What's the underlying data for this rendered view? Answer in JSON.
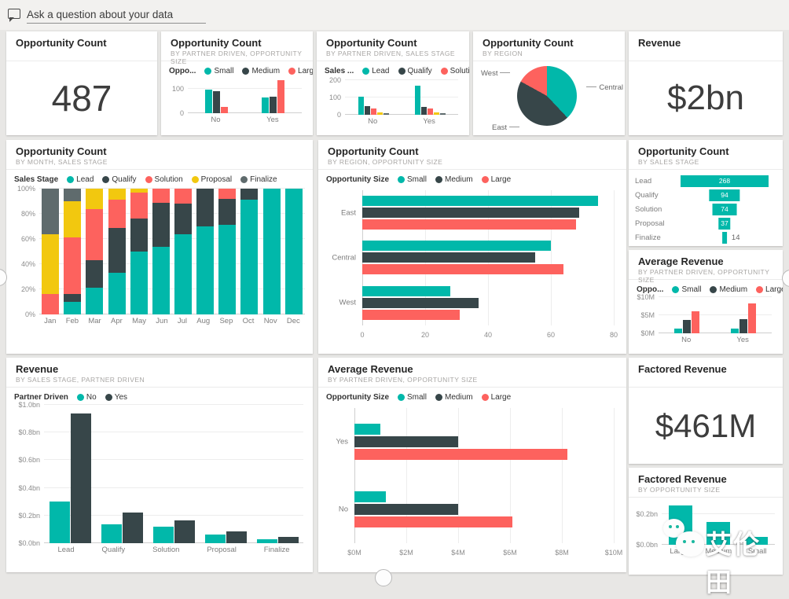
{
  "qna": {
    "placeholder": "Ask a question about your data"
  },
  "palette": {
    "teal": "#01B8AA",
    "dark": "#374649",
    "red": "#FD625E",
    "yellow": "#F2C80F",
    "gray": "#5F6B6D",
    "tile_bg": "#FFFFFF",
    "page_bg": "#E8E7E5",
    "axis_text": "#8C8C8C"
  },
  "tiles": {
    "t1": {
      "title": "Opportunity Count",
      "value": "487"
    },
    "t2": {
      "title": "Opportunity Count",
      "subtitle": "BY PARTNER DRIVEN, OPPORTUNITY SIZE"
    },
    "t3": {
      "title": "Opportunity Count",
      "subtitle": "BY PARTNER DRIVEN, SALES STAGE"
    },
    "t4": {
      "title": "Opportunity Count",
      "subtitle": "BY REGION"
    },
    "t5": {
      "title": "Revenue",
      "value": "$2bn"
    },
    "t6": {
      "title": "Opportunity Count",
      "subtitle": "BY MONTH, SALES STAGE"
    },
    "t7": {
      "title": "Opportunity Count",
      "subtitle": "BY REGION, OPPORTUNITY SIZE"
    },
    "t8": {
      "title": "Opportunity Count",
      "subtitle": "BY SALES STAGE"
    },
    "t9": {
      "title": "Average Revenue",
      "subtitle": "BY PARTNER DRIVEN, OPPORTUNITY SIZE"
    },
    "t10": {
      "title": "Revenue",
      "subtitle": "BY SALES STAGE, PARTNER DRIVEN"
    },
    "t11": {
      "title": "Average Revenue",
      "subtitle": "BY PARTNER DRIVEN, OPPORTUNITY SIZE"
    },
    "t12": {
      "title": "Factored Revenue",
      "value": "$461M"
    },
    "t13": {
      "title": "Factored Revenue",
      "subtitle": "BY OPPORTUNITY SIZE"
    }
  },
  "chart_data": {
    "partner_size_count": {
      "type": "bar",
      "legend_title": "Oppo...",
      "legend": [
        {
          "label": "Small",
          "color": "teal"
        },
        {
          "label": "Medium",
          "color": "dark"
        },
        {
          "label": "Large",
          "color": "red"
        }
      ],
      "categories": [
        "No",
        "Yes"
      ],
      "ymax": 140,
      "yticks": [
        {
          "label": "100",
          "v": 100
        },
        {
          "label": "0",
          "v": 0
        }
      ],
      "series": [
        {
          "label": "Small",
          "color": "teal",
          "values": [
            95,
            65
          ]
        },
        {
          "label": "Medium",
          "color": "dark",
          "values": [
            90,
            68
          ]
        },
        {
          "label": "Large",
          "color": "red",
          "values": [
            25,
            135
          ]
        }
      ]
    },
    "partner_stage_count": {
      "type": "bar",
      "legend_title": "Sales ...",
      "legend": [
        {
          "label": "Lead",
          "color": "teal"
        },
        {
          "label": "Qualify",
          "color": "dark"
        },
        {
          "label": "Solution",
          "color": "red"
        }
      ],
      "categories": [
        "No",
        "Yes"
      ],
      "ymax": 210,
      "yticks": [
        {
          "label": "200",
          "v": 200
        },
        {
          "label": "100",
          "v": 100
        },
        {
          "label": "0",
          "v": 0
        }
      ],
      "series": [
        {
          "label": "Lead",
          "color": "teal",
          "values": [
            105,
            170
          ]
        },
        {
          "label": "Qualify",
          "color": "dark",
          "values": [
            50,
            45
          ]
        },
        {
          "label": "Solution",
          "color": "red",
          "values": [
            35,
            38
          ]
        },
        {
          "label": "Proposal",
          "color": "yellow",
          "values": [
            15,
            15
          ]
        },
        {
          "label": "Finalize",
          "color": "gray",
          "values": [
            8,
            8
          ]
        }
      ]
    },
    "region_pie": {
      "type": "pie",
      "slices": [
        {
          "label": "Central",
          "color": "teal",
          "pct": 38
        },
        {
          "label": "East",
          "color": "dark",
          "pct": 45
        },
        {
          "label": "West",
          "color": "red",
          "pct": 17
        }
      ]
    },
    "month_stage": {
      "type": "stacked-bar-100",
      "legend_title": "Sales Stage",
      "legend": [
        {
          "label": "Lead",
          "color": "teal"
        },
        {
          "label": "Qualify",
          "color": "dark"
        },
        {
          "label": "Solution",
          "color": "red"
        },
        {
          "label": "Proposal",
          "color": "yellow"
        },
        {
          "label": "Finalize",
          "color": "gray"
        }
      ],
      "categories": [
        "Jan",
        "Feb",
        "Mar",
        "Apr",
        "May",
        "Jun",
        "Jul",
        "Aug",
        "Sep",
        "Oct",
        "Nov",
        "Dec"
      ],
      "ymax": 100,
      "yticks": [
        {
          "label": "100%",
          "v": 100
        },
        {
          "label": "80%",
          "v": 80
        },
        {
          "label": "60%",
          "v": 60
        },
        {
          "label": "40%",
          "v": 40
        },
        {
          "label": "20%",
          "v": 20
        },
        {
          "label": "0%",
          "v": 0
        }
      ],
      "series": [
        {
          "label": "Lead",
          "color": "teal",
          "values": [
            0,
            10,
            21,
            33,
            50,
            54,
            64,
            70,
            71,
            91,
            100,
            100
          ]
        },
        {
          "label": "Qualify",
          "color": "dark",
          "values": [
            0,
            6,
            22,
            36,
            26,
            35,
            24,
            30,
            21,
            9,
            0,
            0
          ]
        },
        {
          "label": "Solution",
          "color": "red",
          "values": [
            16,
            45,
            41,
            22,
            21,
            11,
            12,
            0,
            8,
            0,
            0,
            0
          ]
        },
        {
          "label": "Proposal",
          "color": "yellow",
          "values": [
            48,
            29,
            16,
            9,
            3,
            0,
            0,
            0,
            0,
            0,
            0,
            0
          ]
        },
        {
          "label": "Finalize",
          "color": "gray",
          "values": [
            36,
            10,
            0,
            0,
            0,
            0,
            0,
            0,
            0,
            0,
            0,
            0
          ]
        }
      ]
    },
    "region_size": {
      "type": "bar",
      "orientation": "horizontal",
      "legend_title": "Opportunity Size",
      "legend": [
        {
          "label": "Small",
          "color": "teal"
        },
        {
          "label": "Medium",
          "color": "dark"
        },
        {
          "label": "Large",
          "color": "red"
        }
      ],
      "xmax": 80,
      "xticks": [
        {
          "label": "0",
          "v": 0
        },
        {
          "label": "20",
          "v": 20
        },
        {
          "label": "40",
          "v": 40
        },
        {
          "label": "60",
          "v": 60
        },
        {
          "label": "80",
          "v": 80
        }
      ],
      "series": [
        {
          "label": "Small",
          "color": "teal"
        },
        {
          "label": "Medium",
          "color": "dark"
        },
        {
          "label": "Large",
          "color": "red"
        }
      ],
      "rows": [
        {
          "cat": "East",
          "values": [
            75,
            69,
            68
          ]
        },
        {
          "cat": "Central",
          "values": [
            60,
            55,
            64
          ]
        },
        {
          "cat": "West",
          "values": [
            28,
            37,
            31
          ]
        }
      ]
    },
    "stage_funnel": {
      "type": "funnel",
      "max": 268,
      "stages": [
        {
          "label": "Lead",
          "value": 268
        },
        {
          "label": "Qualify",
          "value": 94
        },
        {
          "label": "Solution",
          "value": 74
        },
        {
          "label": "Proposal",
          "value": 37
        },
        {
          "label": "Finalize",
          "value": 14,
          "outside": true
        }
      ]
    },
    "avg_rev_small": {
      "type": "bar",
      "legend_title": "Oppo...",
      "legend": [
        {
          "label": "Small",
          "color": "teal"
        },
        {
          "label": "Medium",
          "color": "dark"
        },
        {
          "label": "Large",
          "color": "red"
        }
      ],
      "categories": [
        "No",
        "Yes"
      ],
      "ymax": 10,
      "yticks": [
        {
          "label": "$10M",
          "v": 10
        },
        {
          "label": "$5M",
          "v": 5
        },
        {
          "label": "$0M",
          "v": 0
        }
      ],
      "series": [
        {
          "label": "Small",
          "color": "teal",
          "values": [
            1.3,
            1.2
          ]
        },
        {
          "label": "Medium",
          "color": "dark",
          "values": [
            3.8,
            4.0
          ]
        },
        {
          "label": "Large",
          "color": "red",
          "values": [
            6.0,
            8.2
          ]
        }
      ]
    },
    "rev_stage_partner": {
      "type": "bar",
      "legend_title": "Partner Driven",
      "legend": [
        {
          "label": "No",
          "color": "teal"
        },
        {
          "label": "Yes",
          "color": "dark"
        }
      ],
      "categories": [
        "Lead",
        "Qualify",
        "Solution",
        "Proposal",
        "Finalize"
      ],
      "ymax": 1.0,
      "yticks": [
        {
          "label": "$1.0bn",
          "v": 1.0
        },
        {
          "label": "$0.8bn",
          "v": 0.8
        },
        {
          "label": "$0.6bn",
          "v": 0.6
        },
        {
          "label": "$0.4bn",
          "v": 0.4
        },
        {
          "label": "$0.2bn",
          "v": 0.2
        },
        {
          "label": "$0.0bn",
          "v": 0
        }
      ],
      "series": [
        {
          "label": "No",
          "color": "teal",
          "values": [
            0.3,
            0.135,
            0.12,
            0.06,
            0.03
          ]
        },
        {
          "label": "Yes",
          "color": "dark",
          "values": [
            0.94,
            0.22,
            0.165,
            0.085,
            0.045
          ]
        }
      ]
    },
    "avg_rev_hbar": {
      "type": "bar",
      "orientation": "horizontal",
      "legend_title": "Opportunity Size",
      "legend": [
        {
          "label": "Small",
          "color": "teal"
        },
        {
          "label": "Medium",
          "color": "dark"
        },
        {
          "label": "Large",
          "color": "red"
        }
      ],
      "xmax": 10,
      "xticks": [
        {
          "label": "$0M",
          "v": 0
        },
        {
          "label": "$2M",
          "v": 2
        },
        {
          "label": "$4M",
          "v": 4
        },
        {
          "label": "$6M",
          "v": 6
        },
        {
          "label": "$8M",
          "v": 8
        },
        {
          "label": "$10M",
          "v": 10
        }
      ],
      "series": [
        {
          "label": "Small",
          "color": "teal"
        },
        {
          "label": "Medium",
          "color": "dark"
        },
        {
          "label": "Large",
          "color": "red"
        }
      ],
      "rows": [
        {
          "cat": "Yes",
          "values": [
            1.0,
            4.0,
            8.2
          ]
        },
        {
          "cat": "No",
          "values": [
            1.2,
            4.0,
            6.1
          ]
        }
      ]
    },
    "factored_size": {
      "type": "bar",
      "categories": [
        "Large",
        "Medium",
        "Small"
      ],
      "ymax": 0.3,
      "yticks": [
        {
          "label": "$0.2bn",
          "v": 0.2
        },
        {
          "label": "$0.0bn",
          "v": 0
        }
      ],
      "series": [
        {
          "label": "Factored Revenue",
          "color": "teal",
          "values": [
            0.26,
            0.15,
            0.05
          ]
        }
      ]
    }
  },
  "watermark": {
    "text": "艾伦田",
    "icon": "wechat"
  }
}
